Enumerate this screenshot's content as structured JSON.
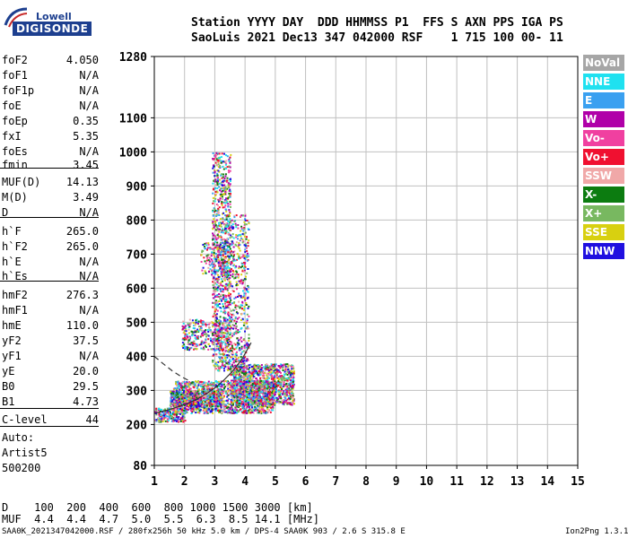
{
  "logo": {
    "brand": "Lowell",
    "product": "DIGISONDE"
  },
  "header": {
    "line1": "Station YYYY DAY  DDD HHMMSS P1  FFS S AXN PPS IGA PS",
    "line2": "SaoLuis 2021 Dec13 347 042000 RSF    1 715 100 00- 11"
  },
  "params": [
    {
      "name": "foF2",
      "value": "4.050"
    },
    {
      "name": "foF1",
      "value": "N/A"
    },
    {
      "name": "foF1p",
      "value": "N/A"
    },
    {
      "name": "foE",
      "value": "N/A"
    },
    {
      "name": "foEp",
      "value": "0.35"
    },
    {
      "name": "fxI",
      "value": "5.35"
    },
    {
      "name": "foEs",
      "value": "N/A"
    },
    {
      "name": "fmin",
      "value": "3.45"
    },
    {
      "name": "MUF(D)",
      "value": "14.13"
    },
    {
      "name": "M(D)",
      "value": "3.49"
    },
    {
      "name": "D",
      "value": "N/A"
    },
    {
      "name": "h`F",
      "value": "265.0"
    },
    {
      "name": "h`F2",
      "value": "265.0"
    },
    {
      "name": "h`E",
      "value": "N/A"
    },
    {
      "name": "h`Es",
      "value": "N/A"
    },
    {
      "name": "hmF2",
      "value": "276.3"
    },
    {
      "name": "hmF1",
      "value": "N/A"
    },
    {
      "name": "hmE",
      "value": "110.0"
    },
    {
      "name": "yF2",
      "value": "37.5"
    },
    {
      "name": "yF1",
      "value": "N/A"
    },
    {
      "name": "yE",
      "value": "20.0"
    },
    {
      "name": "B0",
      "value": "29.5"
    },
    {
      "name": "B1",
      "value": "4.73"
    },
    {
      "name": "C-level",
      "value": "44"
    }
  ],
  "auto": [
    "Auto:",
    "Artist5",
    "500200"
  ],
  "legend": [
    {
      "label": "NoVal",
      "color": "#a6a6a6"
    },
    {
      "label": "NNE",
      "color": "#1fe1f0"
    },
    {
      "label": "E",
      "color": "#3aa0f0"
    },
    {
      "label": "W",
      "color": "#b000a8"
    },
    {
      "label": "Vo-",
      "color": "#f040a0"
    },
    {
      "label": "Vo+",
      "color": "#f01030"
    },
    {
      "label": "SSW",
      "color": "#f0a8a8"
    },
    {
      "label": "X-",
      "color": "#0c7c10"
    },
    {
      "label": "X+",
      "color": "#78b860"
    },
    {
      "label": "SSE",
      "color": "#d8d010"
    },
    {
      "label": "NNW",
      "color": "#2010e0"
    }
  ],
  "muf_table": {
    "row1": "D    100  200  400  600  800 1000 1500 3000 [km]",
    "row2": "MUF  4.4  4.4  4.7  5.0  5.5  6.3  8.5 14.1 [MHz]"
  },
  "footer": {
    "left": "SAA0K_2021347042000.RSF / 280fx256h 50 kHz 5.0 km / DPS-4 SAA0K 903 / 2.6 S 315.8 E",
    "right": "Ion2Png 1.3.17"
  },
  "chart_data": {
    "type": "scatter",
    "x_ticks": [
      "1",
      "2",
      "3",
      "4",
      "5",
      "6",
      "7",
      "8",
      "9",
      "10",
      "11",
      "12",
      "13",
      "14",
      "15"
    ],
    "y_ticks": [
      "80",
      "200",
      "300",
      "400",
      "500",
      "600",
      "700",
      "800",
      "900",
      "1000",
      "1100",
      "1280"
    ],
    "xlim": [
      1,
      15
    ],
    "ylim": [
      80,
      1280
    ],
    "grid": true,
    "traces": [
      {
        "name": "",
        "x": [
          1.0,
          1.2,
          1.5,
          1.8,
          2.1,
          2.4,
          2.7,
          3.0,
          3.3,
          3.6,
          3.9,
          4.2
        ],
        "y": [
          232,
          237,
          244,
          252,
          262,
          274,
          289,
          307,
          330,
          358,
          392,
          440
        ]
      },
      {
        "name": "",
        "x": [
          1.0,
          1.3,
          1.6,
          1.9,
          2.2
        ],
        "y": [
          400,
          378,
          357,
          340,
          326
        ]
      }
    ]
  }
}
